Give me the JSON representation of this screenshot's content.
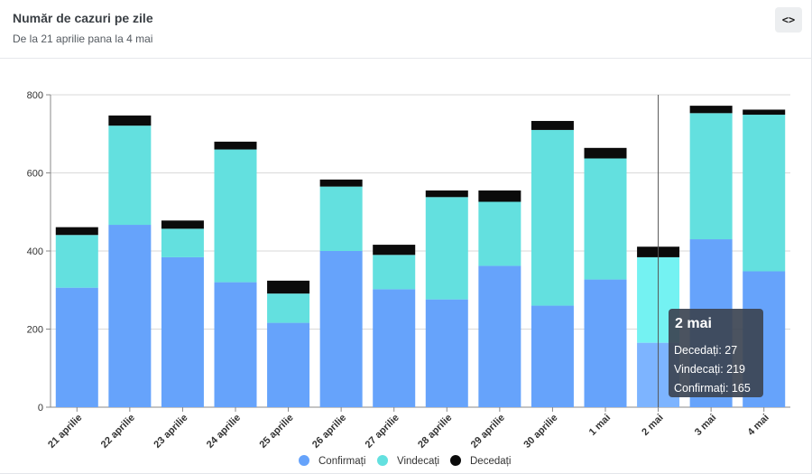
{
  "header": {
    "title": "Număr de cazuri pe zile",
    "subtitle": "De la 21 aprilie pana la 4 mai",
    "embed_icon": "<>"
  },
  "colors": {
    "confirmati": "#66a3fb",
    "vindecati": "#63e0df",
    "decedati": "#0b0b0b",
    "grid": "#d9d9d9",
    "axis": "#333333",
    "tooltip_bg": "#3c4452",
    "highlight_confirmati": "#7db4ff",
    "highlight_vindecati": "#74f2f2"
  },
  "chart_data": {
    "type": "bar",
    "stacked": true,
    "title": "Număr de cazuri pe zile",
    "subtitle": "De la 21 aprilie pana la 4 mai",
    "categories": [
      "21 aprilie",
      "22 aprilie",
      "23 aprilie",
      "24 aprilie",
      "25 aprilie",
      "26 aprilie",
      "27 aprilie",
      "28 aprilie",
      "29 aprilie",
      "30 aprilie",
      "1 mai",
      "2 mai",
      "3 mai",
      "4 mai"
    ],
    "series": [
      {
        "name": "Confirmați",
        "key": "confirmati",
        "values": [
          306,
          467,
          384,
          320,
          216,
          400,
          302,
          276,
          362,
          260,
          327,
          165,
          430,
          348
        ]
      },
      {
        "name": "Vindecați",
        "key": "vindecati",
        "values": [
          135,
          254,
          73,
          340,
          75,
          165,
          88,
          262,
          164,
          450,
          310,
          219,
          323,
          401
        ]
      },
      {
        "name": "Decedați",
        "key": "decedati",
        "values": [
          20,
          26,
          21,
          20,
          33,
          18,
          26,
          17,
          29,
          23,
          27,
          27,
          19,
          13
        ]
      }
    ],
    "ylim": [
      0,
      800
    ],
    "yticks": [
      0,
      200,
      400,
      600,
      800
    ],
    "legend": [
      "Confirmați",
      "Vindecați",
      "Decedați"
    ],
    "legend_position": "bottom",
    "tooltip": {
      "category": "2 mai",
      "lines": [
        {
          "label": "Decedați",
          "value": "27"
        },
        {
          "label": "Vindecați",
          "value": "219"
        },
        {
          "label": "Confirmați",
          "value": "165"
        }
      ]
    }
  }
}
